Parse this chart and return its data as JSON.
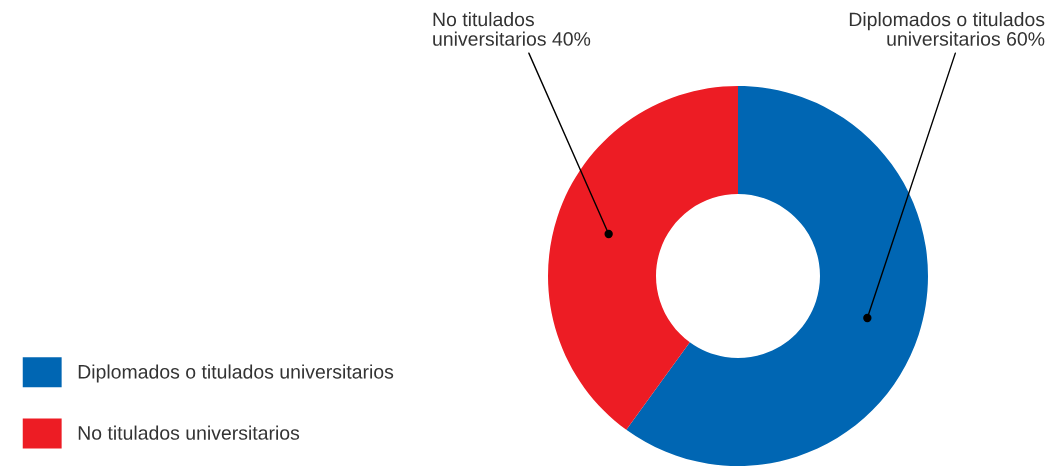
{
  "chart_data": {
    "type": "donut",
    "categories": [
      "Diplomados o titulados universitarios",
      "No titulados universitarios"
    ],
    "values": [
      60,
      40
    ],
    "colors": [
      "#0066b3",
      "#ed1c24"
    ],
    "value_labels": [
      "Diplomados o titulados\nuniversitarios 60%",
      "No titulados\nuniversitarios 40%"
    ],
    "legend": "bottom left"
  }
}
